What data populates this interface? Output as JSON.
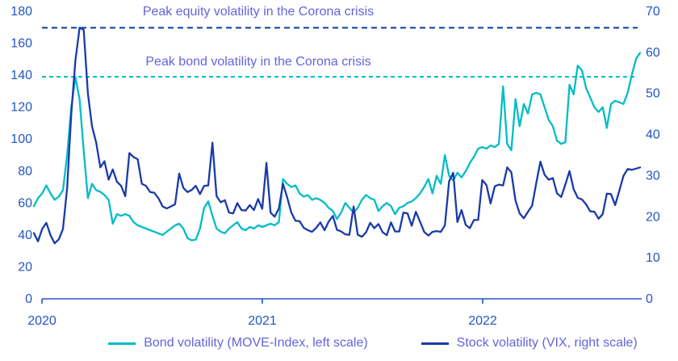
{
  "chart_data": {
    "type": "line",
    "title": "",
    "x_tick_labels": [
      "2020",
      "2021",
      "2022"
    ],
    "left_axis": {
      "label": "MOVE-Index",
      "range": [
        0,
        180
      ],
      "ticks": [
        0,
        20,
        40,
        60,
        80,
        100,
        120,
        140,
        160,
        180
      ]
    },
    "right_axis": {
      "label": "VIX",
      "range": [
        0,
        70
      ],
      "ticks": [
        0,
        10,
        20,
        30,
        40,
        50,
        60,
        70
      ]
    },
    "grid": "off",
    "legend_position": "bottom",
    "colors": {
      "axis": "#2356C5",
      "tick_label": "#2356C5",
      "annotation_text": "#6464DC",
      "bond_line": "#00BCC8",
      "stock_line": "#1A3AA8",
      "equity_peak_line": "#0A3D9E"
    },
    "reference_lines": [
      {
        "label": "Peak equity volatility in the Corona crisis",
        "value": 66,
        "axis": "right",
        "style": "dashed",
        "color": "#0A3D9E"
      },
      {
        "label": "Peak bond volatility in the Corona crisis",
        "value": 139,
        "axis": "left",
        "style": "dashed",
        "color": "#00BCC8"
      }
    ],
    "x_frequency": "weekly, Dec 2019 - Oct 2022",
    "series": [
      {
        "name": "Bond volatility (MOVE-Index, left scale)",
        "axis": "left",
        "color": "#00BCC8",
        "values": [
          58,
          63,
          66,
          71,
          66,
          62,
          64,
          68,
          90,
          120,
          139,
          125,
          93,
          63,
          72,
          68,
          67,
          65,
          62,
          47,
          53,
          52,
          53,
          52,
          48,
          46,
          45,
          44,
          43,
          42,
          41,
          40,
          42,
          44,
          46,
          47,
          44,
          38,
          36.6,
          37,
          44,
          57,
          61,
          52,
          44,
          42,
          41,
          44,
          46,
          48,
          44,
          43,
          45,
          44,
          46,
          45,
          46,
          47,
          46,
          48,
          75,
          72,
          70,
          71,
          66,
          64,
          65,
          62,
          63,
          62,
          60,
          57,
          55,
          50,
          54,
          60,
          57,
          54,
          57,
          62,
          65,
          63,
          62,
          55,
          58,
          60,
          58,
          53,
          57,
          58,
          60,
          61,
          63,
          66,
          70,
          75,
          66,
          77,
          72,
          90,
          77,
          74,
          79,
          76,
          80,
          85,
          89,
          94,
          95,
          94,
          96,
          95,
          97,
          133,
          97,
          93,
          125,
          108,
          122,
          116,
          128,
          129,
          128,
          120,
          112,
          108,
          99,
          97,
          98,
          134,
          128,
          146,
          143,
          132,
          126,
          120,
          117,
          120,
          107,
          122,
          124,
          123,
          122,
          129,
          140,
          150,
          154
        ]
      },
      {
        "name": "Stock volatility (VIX, right scale)",
        "axis": "right",
        "color": "#1A3AA8",
        "values": [
          16,
          14,
          17,
          18.5,
          15.5,
          13.5,
          14.5,
          17,
          27,
          45,
          58,
          66,
          65.5,
          50,
          42,
          38,
          32,
          33.5,
          29,
          31.5,
          28.5,
          27.5,
          25,
          35.5,
          34.5,
          34,
          28,
          27.5,
          26,
          25.8,
          24.5,
          22.5,
          22,
          22.5,
          23,
          30.5,
          27,
          26,
          26.5,
          27.5,
          25.5,
          27.5,
          27.6,
          38,
          25,
          23.5,
          24,
          21,
          20.8,
          23.3,
          21.6,
          21.5,
          22.8,
          21.6,
          24.3,
          21.9,
          33.1,
          21,
          20,
          22,
          28,
          24.7,
          21,
          19,
          18.9,
          17.3,
          16.7,
          16.3,
          17.3,
          18.6,
          16.7,
          18.8,
          20.2,
          16.8,
          16.4,
          15.7,
          15.6,
          22.5,
          15.6,
          15.1,
          16.2,
          18.5,
          17.2,
          18.2,
          16.2,
          15.5,
          18.6,
          16.4,
          16.4,
          21,
          20.8,
          17.8,
          21.2,
          18.8,
          16.3,
          15.4,
          16.3,
          16.5,
          16.3,
          17.9,
          28.6,
          30.7,
          18.7,
          21.6,
          18,
          17.2,
          19.2,
          19.2,
          28.9,
          27.7,
          23.2,
          27.4,
          27.8,
          27.6,
          32,
          30.8,
          23.9,
          20.8,
          19.6,
          21.2,
          22.7,
          28.2,
          33.4,
          30.2,
          29,
          29.4,
          25.7,
          24.8,
          27.8,
          31.1,
          26.7,
          24.6,
          24.2,
          23,
          21.3,
          21.2,
          19.5,
          20.6,
          25.6,
          25.5,
          22.8,
          26.3,
          29.9,
          31.6,
          31.4,
          31.7,
          32
        ]
      }
    ]
  }
}
